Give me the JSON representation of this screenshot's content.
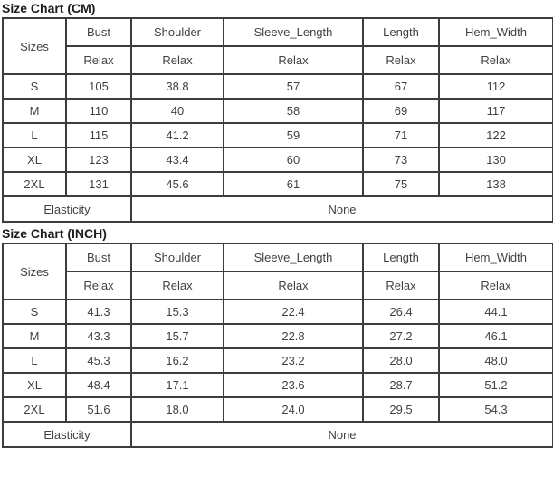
{
  "accent_colors": {
    "border": "#3d3d3d",
    "text": "#3f4245",
    "title_text": "#1c1c1c",
    "background": "#ffffff"
  },
  "chart_data": [
    {
      "type": "table",
      "title": "Size Chart (CM)",
      "corner_label": "Sizes",
      "columns": [
        "Bust",
        "Shoulder",
        "Sleeve_Length",
        "Length",
        "Hem_Width"
      ],
      "relax_label": "Relax",
      "rows": [
        {
          "size": "S",
          "values": [
            "105",
            "38.8",
            "57",
            "67",
            "112"
          ]
        },
        {
          "size": "M",
          "values": [
            "110",
            "40",
            "58",
            "69",
            "117"
          ]
        },
        {
          "size": "L",
          "values": [
            "115",
            "41.2",
            "59",
            "71",
            "122"
          ]
        },
        {
          "size": "XL",
          "values": [
            "123",
            "43.4",
            "60",
            "73",
            "130"
          ]
        },
        {
          "size": "2XL",
          "values": [
            "131",
            "45.6",
            "61",
            "75",
            "138"
          ]
        }
      ],
      "footer": {
        "label": "Elasticity",
        "value": "None"
      }
    },
    {
      "type": "table",
      "title": "Size Chart (INCH)",
      "corner_label": "Sizes",
      "columns": [
        "Bust",
        "Shoulder",
        "Sleeve_Length",
        "Length",
        "Hem_Width"
      ],
      "relax_label": "Relax",
      "rows": [
        {
          "size": "S",
          "values": [
            "41.3",
            "15.3",
            "22.4",
            "26.4",
            "44.1"
          ]
        },
        {
          "size": "M",
          "values": [
            "43.3",
            "15.7",
            "22.8",
            "27.2",
            "46.1"
          ]
        },
        {
          "size": "L",
          "values": [
            "45.3",
            "16.2",
            "23.2",
            "28.0",
            "48.0"
          ]
        },
        {
          "size": "XL",
          "values": [
            "48.4",
            "17.1",
            "23.6",
            "28.7",
            "51.2"
          ]
        },
        {
          "size": "2XL",
          "values": [
            "51.6",
            "18.0",
            "24.0",
            "29.5",
            "54.3"
          ]
        }
      ],
      "footer": {
        "label": "Elasticity",
        "value": "None"
      }
    }
  ]
}
